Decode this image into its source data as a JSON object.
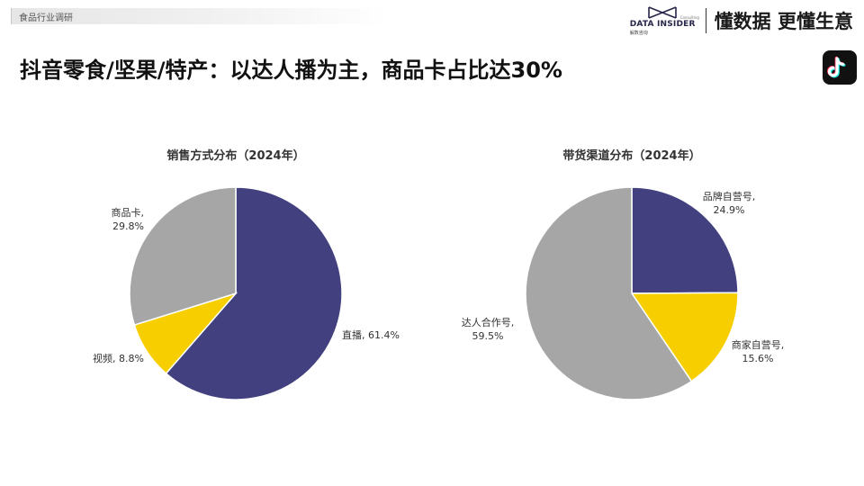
{
  "header": {
    "tag": "食品行业调研",
    "logo": {
      "name": "DATA INSIDER",
      "consult": "Consulting",
      "cn": "解数咨询"
    },
    "slogan": "懂数据 更懂生意"
  },
  "title": "抖音零食/坚果/特产：以达人播为主，商品卡占比达30%",
  "platform_icon": "tiktok-icon",
  "colors": {
    "purple": "#434080",
    "yellow": "#f7cf00",
    "gray": "#a6a6a6"
  },
  "chart_data": [
    {
      "type": "pie",
      "title": "销售方式分布（2024年）",
      "slices": [
        {
          "label": "直播",
          "value": 61.4,
          "display": "61.4%",
          "color": "#434080"
        },
        {
          "label": "视频",
          "value": 8.8,
          "display": "8.8%",
          "color": "#f7cf00"
        },
        {
          "label": "商品卡",
          "value": 29.8,
          "display": "29.8%",
          "color": "#a6a6a6"
        }
      ]
    },
    {
      "type": "pie",
      "title": "带货渠道分布（2024年）",
      "slices": [
        {
          "label": "品牌自营号",
          "value": 24.9,
          "display": "24.9%",
          "color": "#434080"
        },
        {
          "label": "商家自营号",
          "value": 15.6,
          "display": "15.6%",
          "color": "#f7cf00"
        },
        {
          "label": "达人合作号",
          "value": 59.5,
          "display": "59.5%",
          "color": "#a6a6a6"
        }
      ]
    }
  ]
}
